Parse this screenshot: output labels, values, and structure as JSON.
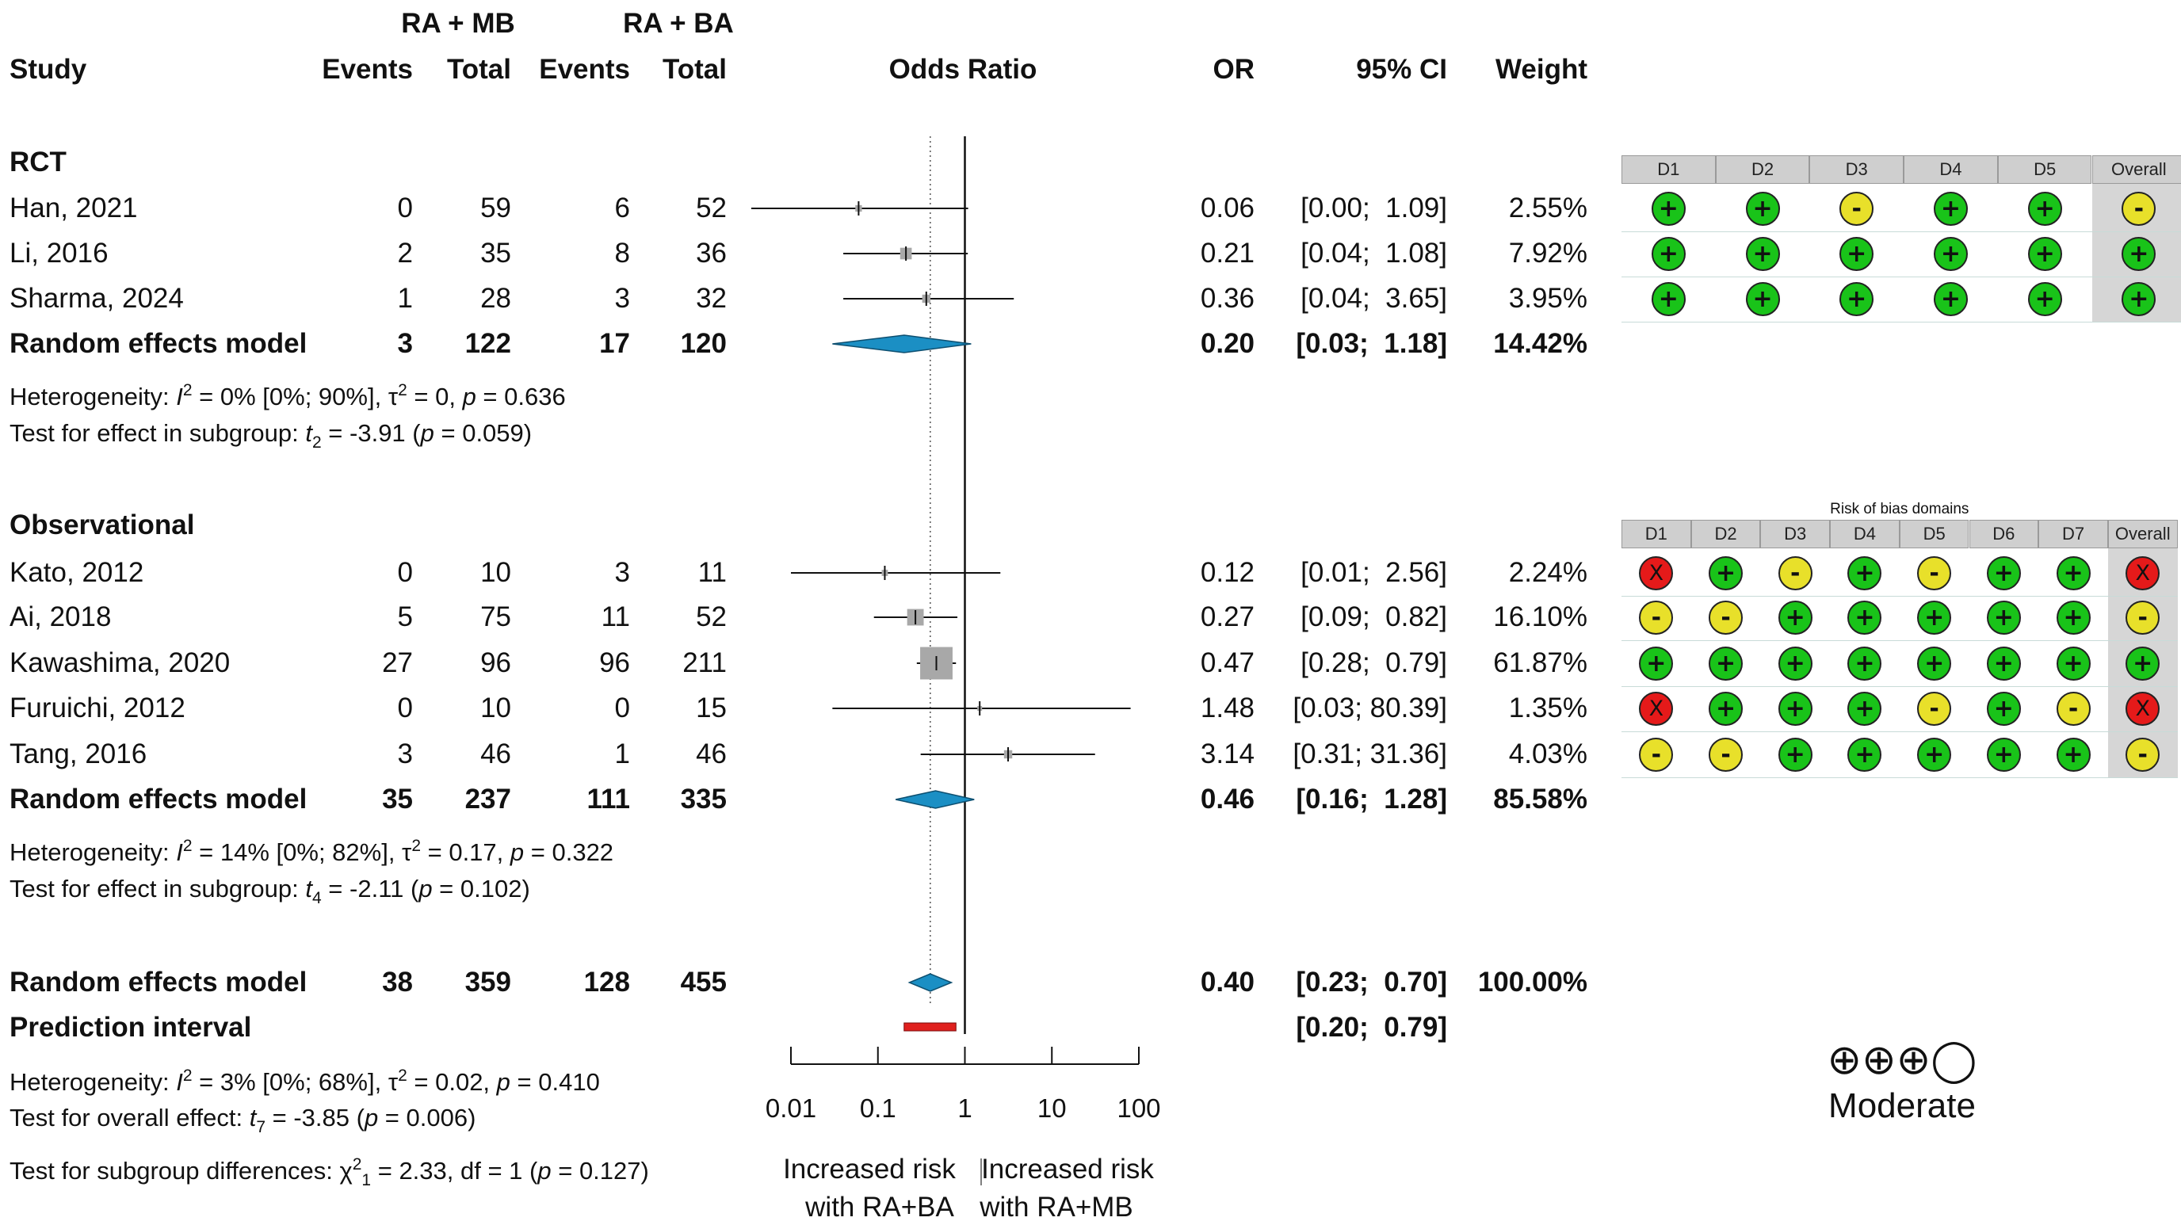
{
  "header": {
    "group1": "RA + MB",
    "group2": "RA + BA",
    "study": "Study",
    "events1": "Events",
    "total1": "Total",
    "events2": "Events",
    "total2": "Total",
    "or_title": "Odds Ratio",
    "or": "OR",
    "ci": "95% CI",
    "weight": "Weight"
  },
  "subgroups": [
    {
      "name": "RCT",
      "studies": [
        {
          "study": "Han, 2021",
          "e1": "0",
          "t1": "59",
          "e2": "6",
          "t2": "52",
          "or": "0.06",
          "ci": "[0.00;  1.09]",
          "w": "2.55%"
        },
        {
          "study": "Li, 2016",
          "e1": "2",
          "t1": "35",
          "e2": "8",
          "t2": "36",
          "or": "0.21",
          "ci": "[0.04;  1.08]",
          "w": "7.92%"
        },
        {
          "study": "Sharma, 2024",
          "e1": "1",
          "t1": "28",
          "e2": "3",
          "t2": "32",
          "or": "0.36",
          "ci": "[0.04;  3.65]",
          "w": "3.95%"
        }
      ],
      "model": {
        "study": "Random effects model",
        "e1": "3",
        "t1": "122",
        "e2": "17",
        "t2": "120",
        "or": "0.20",
        "ci": "[0.03;  1.18]",
        "w": "14.42%"
      },
      "het": {
        "prefix": "Heterogeneity: ",
        "I": "I",
        "i2sup": "2",
        "mid": " = 0% [0%; 90%], τ",
        "tausup": "2",
        "rest1": " = 0, ",
        "p": "p",
        "rest2": " = 0.636"
      },
      "test": {
        "prefix": "Test for effect in subgroup: ",
        "t": "t",
        "sub": "2",
        "rest1": " = -3.91 (",
        "p": "p",
        "rest2": " = 0.059)"
      }
    },
    {
      "name": "Observational",
      "studies": [
        {
          "study": "Kato, 2012",
          "e1": "0",
          "t1": "10",
          "e2": "3",
          "t2": "11",
          "or": "0.12",
          "ci": "[0.01;  2.56]",
          "w": "2.24%"
        },
        {
          "study": "Ai, 2018",
          "e1": "5",
          "t1": "75",
          "e2": "11",
          "t2": "52",
          "or": "0.27",
          "ci": "[0.09;  0.82]",
          "w": "16.10%"
        },
        {
          "study": "Kawashima, 2020",
          "e1": "27",
          "t1": "96",
          "e2": "96",
          "t2": "211",
          "or": "0.47",
          "ci": "[0.28;  0.79]",
          "w": "61.87%"
        },
        {
          "study": "Furuichi, 2012",
          "e1": "0",
          "t1": "10",
          "e2": "0",
          "t2": "15",
          "or": "1.48",
          "ci": "[0.03; 80.39]",
          "w": "1.35%"
        },
        {
          "study": "Tang, 2016",
          "e1": "3",
          "t1": "46",
          "e2": "1",
          "t2": "46",
          "or": "3.14",
          "ci": "[0.31; 31.36]",
          "w": "4.03%"
        }
      ],
      "model": {
        "study": "Random effects model",
        "e1": "35",
        "t1": "237",
        "e2": "111",
        "t2": "335",
        "or": "0.46",
        "ci": "[0.16;  1.28]",
        "w": "85.58%"
      },
      "het": {
        "prefix": "Heterogeneity: ",
        "I": "I",
        "i2sup": "2",
        "mid": " = 14% [0%; 82%], τ",
        "tausup": "2",
        "rest1": " = 0.17, ",
        "p": "p",
        "rest2": " = 0.322"
      },
      "test": {
        "prefix": "Test for effect in subgroup: ",
        "t": "t",
        "sub": "4",
        "rest1": " = -2.11 (",
        "p": "p",
        "rest2": " = 0.102)"
      }
    }
  ],
  "overall": {
    "model": {
      "study": "Random effects model",
      "e1": "38",
      "t1": "359",
      "e2": "128",
      "t2": "455",
      "or": "0.40",
      "ci": "[0.23;  0.70]",
      "w": "100.00%"
    },
    "prediction": {
      "label": "Prediction interval",
      "ci": "[0.20;  0.79]"
    },
    "het": {
      "prefix": "Heterogeneity: ",
      "I": "I",
      "i2sup": "2",
      "mid": " = 3% [0%; 68%], τ",
      "tausup": "2",
      "rest1": " = 0.02, ",
      "p": "p",
      "rest2": " = 0.410"
    },
    "test": {
      "prefix": "Test for overall effect: ",
      "t": "t",
      "sub": "7",
      "rest1": " = -3.85 (",
      "p": "p",
      "rest2": " = 0.006)"
    },
    "subgroup_diff": {
      "prefix": "Test for subgroup differences: ",
      "chi": "χ",
      "chisup": "2",
      "chisub": "1",
      "rest1": " = 2.33, df = 1 (",
      "p": "p",
      "rest2": " = 0.127)"
    }
  },
  "axis": {
    "ticks": [
      "0.01",
      "0.1",
      "1",
      "10",
      "100"
    ],
    "left_label_1": "Increased risk",
    "left_label_2": "with RA+BA",
    "right_label_1": "Increased risk",
    "right_label_2": "with RA+MB"
  },
  "chart_data": {
    "type": "forest",
    "title": "Odds Ratio",
    "x_scale": "log",
    "xlim": [
      0.01,
      100
    ],
    "reference_line": 1,
    "overall_estimate_line": 0.4,
    "studies": [
      {
        "study": "Han, 2021",
        "or": 0.06,
        "lo": 0.0,
        "hi": 1.09,
        "weight": 2.55
      },
      {
        "study": "Li, 2016",
        "or": 0.21,
        "lo": 0.04,
        "hi": 1.08,
        "weight": 7.92
      },
      {
        "study": "Sharma, 2024",
        "or": 0.36,
        "lo": 0.04,
        "hi": 3.65,
        "weight": 3.95
      },
      {
        "study": "Kato, 2012",
        "or": 0.12,
        "lo": 0.01,
        "hi": 2.56,
        "weight": 2.24
      },
      {
        "study": "Ai, 2018",
        "or": 0.27,
        "lo": 0.09,
        "hi": 0.82,
        "weight": 16.1
      },
      {
        "study": "Kawashima, 2020",
        "or": 0.47,
        "lo": 0.28,
        "hi": 0.79,
        "weight": 61.87
      },
      {
        "study": "Furuichi, 2012",
        "or": 1.48,
        "lo": 0.03,
        "hi": 80.39,
        "weight": 1.35
      },
      {
        "study": "Tang, 2016",
        "or": 3.14,
        "lo": 0.31,
        "hi": 31.36,
        "weight": 4.03
      }
    ],
    "summaries": [
      {
        "label": "RCT random effects model",
        "or": 0.2,
        "lo": 0.03,
        "hi": 1.18
      },
      {
        "label": "Observational random effects model",
        "or": 0.46,
        "lo": 0.16,
        "hi": 1.28
      },
      {
        "label": "Overall random effects model",
        "or": 0.4,
        "lo": 0.23,
        "hi": 0.7
      }
    ],
    "prediction_interval": {
      "lo": 0.2,
      "hi": 0.79
    },
    "colors": {
      "diamond": "#1b8fc4",
      "prediction": "#e0201e",
      "square": "#a8a8a8"
    }
  },
  "rob_rct": {
    "headers": [
      "D1",
      "D2",
      "D3",
      "D4",
      "D5",
      "Overall"
    ],
    "rows": [
      [
        "low",
        "low",
        "some",
        "low",
        "low",
        "some"
      ],
      [
        "low",
        "low",
        "low",
        "low",
        "low",
        "low"
      ],
      [
        "low",
        "low",
        "low",
        "low",
        "low",
        "low"
      ]
    ]
  },
  "rob_obs": {
    "title": "Risk of bias domains",
    "headers": [
      "D1",
      "D2",
      "D3",
      "D4",
      "D5",
      "D6",
      "D7",
      "Overall"
    ],
    "rows": [
      [
        "high",
        "low",
        "some",
        "low",
        "some",
        "low",
        "low",
        "high"
      ],
      [
        "some",
        "some",
        "low",
        "low",
        "low",
        "low",
        "low",
        "some"
      ],
      [
        "low",
        "low",
        "low",
        "low",
        "low",
        "low",
        "low",
        "low"
      ],
      [
        "high",
        "low",
        "low",
        "low",
        "some",
        "low",
        "some",
        "high"
      ],
      [
        "some",
        "some",
        "low",
        "low",
        "low",
        "low",
        "low",
        "some"
      ]
    ]
  },
  "rob_symbols": {
    "low": "+",
    "some": "-",
    "high": "X"
  },
  "rob_colors": {
    "low": "#19c319",
    "some": "#e8e02a",
    "high": "#e51a1a"
  },
  "grade": {
    "symbols": "⊕⊕⊕◯",
    "label": "Moderate"
  }
}
